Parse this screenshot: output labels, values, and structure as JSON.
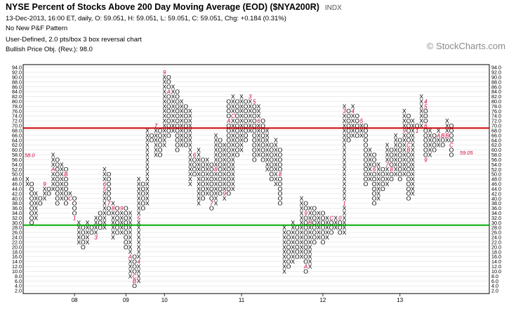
{
  "header": {
    "title": "NYSE Percent of Stocks Above 200 Day Moving Average (EOD) ($NYA200R)",
    "symbol_tag": "INDX",
    "quote_line": "13-Dec-2013, 16:00 ET, daily, O: 59.051, H: 59.051, L: 59.051, C: 59.051, Chg: +0.184 (0.31%)",
    "pattern_line": "No New P&F Pattern",
    "box_line": "User-Defined, 2.0 pts/box 3 box reversal chart",
    "objective_line": "Bullish Price Obj. (Rev.): 98.0"
  },
  "watermark": "© StockCharts.com",
  "colors": {
    "resistance_line": "#cc0000",
    "support_line": "#00aa00",
    "month_marker": "#cc0033",
    "last_price_label": "#cc0033",
    "grid": "#cfcfcf"
  },
  "chart_data": {
    "type": "point_and_figure",
    "box_size": 2.0,
    "reversal": 3,
    "ylim": [
      2.0,
      94.0
    ],
    "y_ticks": [
      2.0,
      4.0,
      6.0,
      8.0,
      10.0,
      12.0,
      14.0,
      16.0,
      18.0,
      20.0,
      22.0,
      24.0,
      26.0,
      28.0,
      30.0,
      32.0,
      34.0,
      36.0,
      38.0,
      40.0,
      42.0,
      44.0,
      46.0,
      48.0,
      50.0,
      52.0,
      54.0,
      56.0,
      58.0,
      60.0,
      62.0,
      64.0,
      66.0,
      68.0,
      70.0,
      72.0,
      74.0,
      76.0,
      78.0,
      80.0,
      82.0,
      84.0,
      86.0,
      88.0,
      90.0,
      92.0,
      94.0
    ],
    "x_labels": [
      "08",
      "09",
      "10",
      "11",
      "12",
      "13"
    ],
    "x_label_columns": [
      11,
      23,
      32,
      50,
      69,
      87
    ],
    "hlines": [
      {
        "value": 69.0,
        "color": "#cc0000"
      },
      {
        "value": 29.0,
        "color": "#00aa00"
      }
    ],
    "left_price_label": "58.0",
    "right_price_label": "59.05",
    "right_price_value": 59.05,
    "columns": [
      {
        "t": "X",
        "lo": 46,
        "hi": 48,
        "m": {}
      },
      {
        "t": "O",
        "lo": 30,
        "hi": 46,
        "m": {}
      },
      {
        "t": "X",
        "lo": 32,
        "hi": 42,
        "m": {}
      },
      {
        "t": "O",
        "lo": 38,
        "hi": 40,
        "m": {}
      },
      {
        "t": "X",
        "lo": 40,
        "hi": 46,
        "m": {
          "46": "9"
        }
      },
      {
        "t": "O",
        "lo": 42,
        "hi": 44,
        "m": {}
      },
      {
        "t": "X",
        "lo": 44,
        "hi": 58,
        "m": {
          "52": "A"
        }
      },
      {
        "t": "O",
        "lo": 38,
        "hi": 56,
        "m": {}
      },
      {
        "t": "X",
        "lo": 40,
        "hi": 54,
        "m": {}
      },
      {
        "t": "O",
        "lo": 38,
        "hi": 52,
        "m": {
          "50": "B"
        }
      },
      {
        "t": "X",
        "lo": 40,
        "hi": 42,
        "m": {
          "40": "C"
        }
      },
      {
        "t": "O",
        "lo": 32,
        "hi": 40,
        "m": {
          "32": "1"
        }
      },
      {
        "t": "X",
        "lo": 22,
        "hi": 30,
        "m": {}
      },
      {
        "t": "O",
        "lo": 20,
        "hi": 28,
        "m": {}
      },
      {
        "t": "X",
        "lo": 22,
        "hi": 30,
        "m": {}
      },
      {
        "t": "O",
        "lo": 26,
        "hi": 28,
        "m": {}
      },
      {
        "t": "X",
        "lo": 24,
        "hi": 32,
        "m": {
          "24": "3"
        }
      },
      {
        "t": "O",
        "lo": 28,
        "hi": 34,
        "m": {}
      },
      {
        "t": "X",
        "lo": 28,
        "hi": 52,
        "m": {
          "44": "5",
          "46": "6"
        }
      },
      {
        "t": "O",
        "lo": 34,
        "hi": 50,
        "m": {
          "38": "7"
        }
      },
      {
        "t": "X",
        "lo": 24,
        "hi": 38,
        "m": {
          "36": "8"
        }
      },
      {
        "t": "O",
        "lo": 26,
        "hi": 36,
        "m": {}
      },
      {
        "t": "X",
        "lo": 26,
        "hi": 36,
        "m": {
          "36": "9"
        }
      },
      {
        "t": "O",
        "lo": 20,
        "hi": 36,
        "m": {}
      },
      {
        "t": "X",
        "lo": 8,
        "hi": 34,
        "m": {
          "16": "A"
        }
      },
      {
        "t": "O",
        "lo": 4,
        "hi": 16,
        "m": {
          "6": "B",
          "8": "C"
        }
      },
      {
        "t": "X",
        "lo": 6,
        "hi": 48,
        "m": {
          "14": "4",
          "32": "5"
        }
      },
      {
        "t": "O",
        "lo": 36,
        "hi": 46,
        "m": {}
      },
      {
        "t": "X",
        "lo": 38,
        "hi": 68,
        "m": {}
      },
      {
        "t": "O",
        "lo": 64,
        "hi": 66,
        "m": {}
      },
      {
        "t": "X",
        "lo": 58,
        "hi": 70,
        "m": {
          "70": "7"
        }
      },
      {
        "t": "O",
        "lo": 58,
        "hi": 68,
        "m": {}
      },
      {
        "t": "X",
        "lo": 62,
        "hi": 92,
        "m": {
          "92": "9"
        }
      },
      {
        "t": "O",
        "lo": 66,
        "hi": 90,
        "m": {
          "84": "A"
        }
      },
      {
        "t": "X",
        "lo": 68,
        "hi": 86,
        "m": {}
      },
      {
        "t": "O",
        "lo": 60,
        "hi": 84,
        "m": {}
      },
      {
        "t": "X",
        "lo": 62,
        "hi": 80,
        "m": {
          "84": "5"
        }
      },
      {
        "t": "O",
        "lo": 62,
        "hi": 78,
        "m": {}
      },
      {
        "t": "X",
        "lo": 46,
        "hi": 76,
        "m": {}
      },
      {
        "t": "O",
        "lo": 50,
        "hi": 58,
        "m": {
          "58": "6"
        }
      },
      {
        "t": "X",
        "lo": 38,
        "hi": 60,
        "m": {}
      },
      {
        "t": "O",
        "lo": 40,
        "hi": 56,
        "m": {}
      },
      {
        "t": "X",
        "lo": 42,
        "hi": 56,
        "m": {}
      },
      {
        "t": "O",
        "lo": 36,
        "hi": 54,
        "m": {
          "38": "7"
        }
      },
      {
        "t": "X",
        "lo": 38,
        "hi": 66,
        "m": {
          "52": "8"
        }
      },
      {
        "t": "O",
        "lo": 42,
        "hi": 64,
        "m": {}
      },
      {
        "t": "X",
        "lo": 40,
        "hi": 62,
        "m": {
          "42": "9"
        }
      },
      {
        "t": "O",
        "lo": 42,
        "hi": 80,
        "m": {
          "72": "A"
        }
      },
      {
        "t": "X",
        "lo": 44,
        "hi": 82,
        "m": {
          "74": "C"
        }
      },
      {
        "t": "O",
        "lo": 58,
        "hi": 80,
        "m": {}
      },
      {
        "t": "X",
        "lo": 60,
        "hi": 82,
        "m": {
          "84": "2"
        }
      },
      {
        "t": "O",
        "lo": 64,
        "hi": 80,
        "m": {}
      },
      {
        "t": "X",
        "lo": 68,
        "hi": 82,
        "m": {
          "82": "3"
        }
      },
      {
        "t": "O",
        "lo": 56,
        "hi": 80,
        "m": {
          "80": "5"
        }
      },
      {
        "t": "X",
        "lo": 58,
        "hi": 78,
        "m": {
          "72": "6"
        }
      },
      {
        "t": "O",
        "lo": 56,
        "hi": 72,
        "m": {}
      },
      {
        "t": "X",
        "lo": 52,
        "hi": 68,
        "m": {}
      },
      {
        "t": "O",
        "lo": 48,
        "hi": 62,
        "m": {}
      },
      {
        "t": "X",
        "lo": 46,
        "hi": 64,
        "m": {}
      },
      {
        "t": "O",
        "lo": 38,
        "hi": 60,
        "m": {
          "50": "8"
        }
      },
      {
        "t": "X",
        "lo": 10,
        "hi": 28,
        "m": {}
      },
      {
        "t": "O",
        "lo": 12,
        "hi": 26,
        "m": {}
      },
      {
        "t": "X",
        "lo": 14,
        "hi": 30,
        "m": {}
      },
      {
        "t": "O",
        "lo": 16,
        "hi": 28,
        "m": {}
      },
      {
        "t": "X",
        "lo": 16,
        "hi": 40,
        "m": {}
      },
      {
        "t": "O",
        "lo": 10,
        "hi": 38,
        "m": {
          "12": "A",
          "34": "9"
        }
      },
      {
        "t": "X",
        "lo": 12,
        "hi": 36,
        "m": {
          "30": "B"
        }
      },
      {
        "t": "O",
        "lo": 22,
        "hi": 36,
        "m": {}
      },
      {
        "t": "X",
        "lo": 24,
        "hi": 34,
        "m": {}
      },
      {
        "t": "O",
        "lo": 22,
        "hi": 34,
        "m": {}
      },
      {
        "t": "X",
        "lo": 24,
        "hi": 32,
        "m": {}
      },
      {
        "t": "O",
        "lo": 26,
        "hi": 32,
        "m": {
          "32": "C"
        }
      },
      {
        "t": "X",
        "lo": 28,
        "hi": 32,
        "m": {}
      },
      {
        "t": "O",
        "lo": 26,
        "hi": 32,
        "m": {
          "32": "0"
        }
      },
      {
        "t": "X",
        "lo": 26,
        "hi": 78,
        "m": {
          "38": "1",
          "76": "3"
        }
      },
      {
        "t": "O",
        "lo": 64,
        "hi": 76,
        "m": {}
      },
      {
        "t": "X",
        "lo": 66,
        "hi": 78,
        "m": {
          "76": "4"
        }
      },
      {
        "t": "O",
        "lo": 66,
        "hi": 74,
        "m": {}
      },
      {
        "t": "X",
        "lo": 66,
        "hi": 72,
        "m": {
          "72": "5"
        }
      },
      {
        "t": "O",
        "lo": 46,
        "hi": 70,
        "m": {}
      },
      {
        "t": "X",
        "lo": 48,
        "hi": 60,
        "m": {}
      },
      {
        "t": "O",
        "lo": 38,
        "hi": 58,
        "m": {
          "52": "6"
        }
      },
      {
        "t": "X",
        "lo": 40,
        "hi": 54,
        "m": {}
      },
      {
        "t": "O",
        "lo": 44,
        "hi": 52,
        "m": {}
      },
      {
        "t": "X",
        "lo": 46,
        "hi": 62,
        "m": {
          "54": "7"
        }
      },
      {
        "t": "O",
        "lo": 48,
        "hi": 60,
        "m": {
          "52": "8"
        }
      },
      {
        "t": "X",
        "lo": 50,
        "hi": 66,
        "m": {}
      },
      {
        "t": "O",
        "lo": 48,
        "hi": 64,
        "m": {}
      },
      {
        "t": "X",
        "lo": 50,
        "hi": 76,
        "m": {
          "68": "9"
        }
      },
      {
        "t": "O",
        "lo": 40,
        "hi": 74,
        "m": {
          "62": "C",
          "60": "B"
        }
      },
      {
        "t": "X",
        "lo": 42,
        "hi": 72,
        "m": {}
      },
      {
        "t": "O",
        "lo": 68,
        "hi": 70,
        "m": {
          "68": "1"
        }
      },
      {
        "t": "X",
        "lo": 70,
        "hi": 82,
        "m": {}
      },
      {
        "t": "O",
        "lo": 56,
        "hi": 80,
        "m": {
          "80": "4",
          "78": "5",
          "70": "6",
          "56": "9"
        }
      },
      {
        "t": "X",
        "lo": 58,
        "hi": 68,
        "m": {}
      },
      {
        "t": "O",
        "lo": 60,
        "hi": 66,
        "m": {}
      },
      {
        "t": "X",
        "lo": 62,
        "hi": 68,
        "m": {
          "66": "A"
        }
      },
      {
        "t": "O",
        "lo": 62,
        "hi": 66,
        "m": {
          "66": "B"
        }
      },
      {
        "t": "X",
        "lo": 64,
        "hi": 72,
        "m": {
          "66": "B"
        }
      },
      {
        "t": "O",
        "lo": 58,
        "hi": 70,
        "m": {
          "62": "C"
        }
      }
    ]
  }
}
